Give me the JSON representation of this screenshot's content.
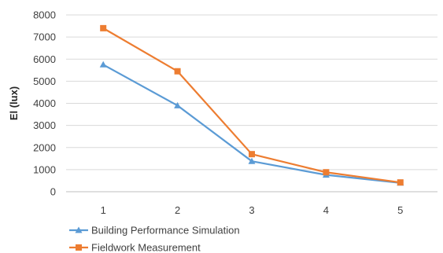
{
  "chart_data": {
    "type": "line",
    "title": "",
    "xlabel": "",
    "ylabel": "El (lux)",
    "categories": [
      "1",
      "2",
      "3",
      "4",
      "5"
    ],
    "ylim": [
      0,
      8000
    ],
    "yticks": [
      0,
      1000,
      2000,
      3000,
      4000,
      5000,
      6000,
      7000,
      8000
    ],
    "grid": "horizontal",
    "legend_position": "bottom-left",
    "series": [
      {
        "name": "Building Performance Simulation",
        "values": [
          5750,
          3900,
          1380,
          760,
          400
        ],
        "color": "#5b9bd5",
        "marker": "triangle"
      },
      {
        "name": "Fieldwork Measurement",
        "values": [
          7400,
          5450,
          1700,
          880,
          420
        ],
        "color": "#ed7d31",
        "marker": "square"
      }
    ]
  }
}
